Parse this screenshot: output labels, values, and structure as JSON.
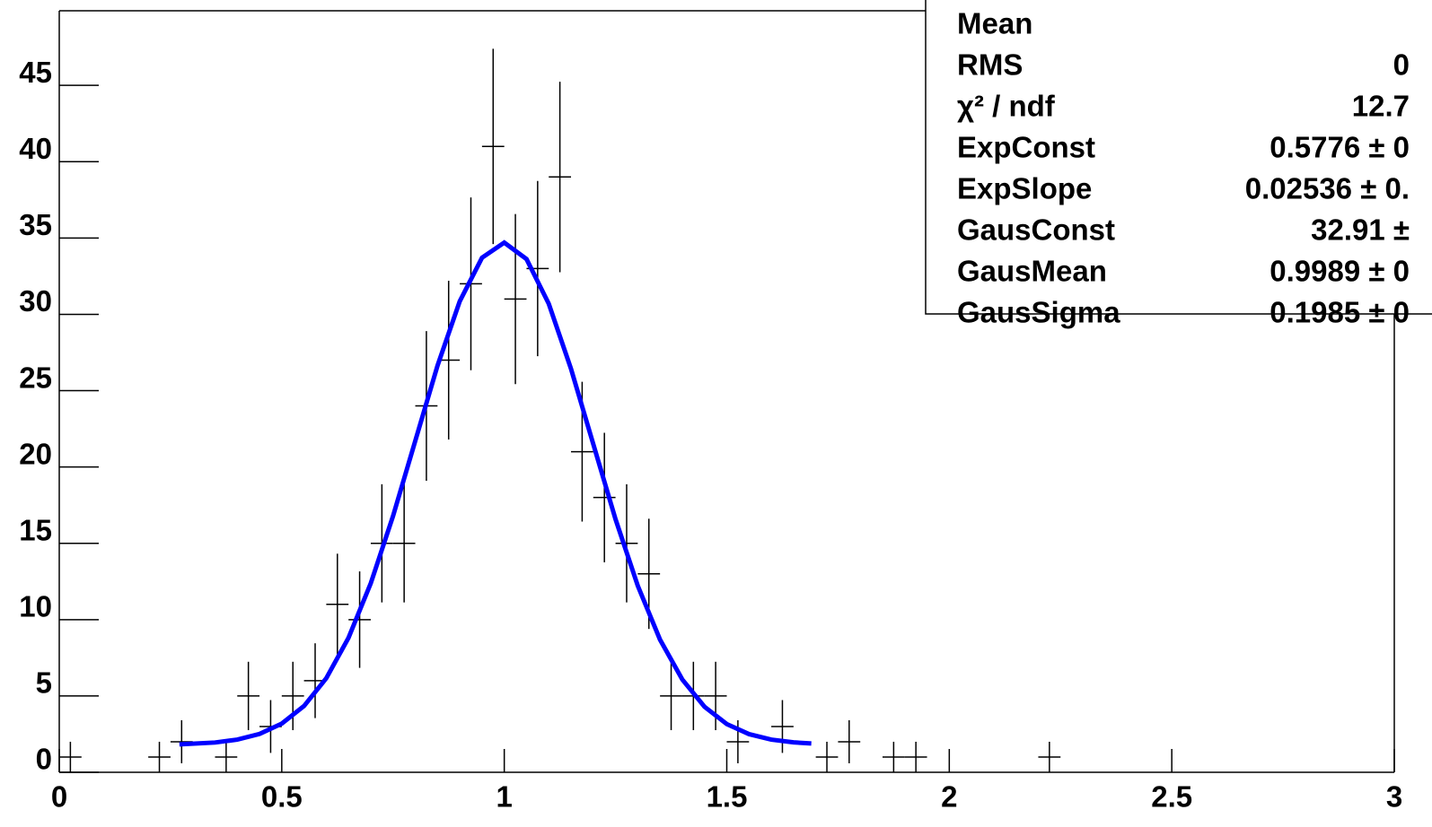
{
  "chart_data": {
    "type": "errorbar",
    "x": [
      0.025,
      0.225,
      0.275,
      0.375,
      0.425,
      0.475,
      0.525,
      0.575,
      0.625,
      0.675,
      0.725,
      0.775,
      0.825,
      0.875,
      0.925,
      0.975,
      1.025,
      1.075,
      1.125,
      1.175,
      1.225,
      1.275,
      1.325,
      1.375,
      1.425,
      1.475,
      1.525,
      1.625,
      1.725,
      1.775,
      1.875,
      1.925,
      2.225
    ],
    "values": [
      1,
      1,
      2,
      1,
      5,
      3,
      5,
      6,
      11,
      10,
      15,
      15,
      24,
      27,
      32,
      41,
      31,
      33,
      39,
      21,
      18,
      15,
      13,
      5,
      5,
      5,
      2,
      3,
      1,
      2,
      1,
      1,
      1
    ],
    "errors": [
      1,
      1,
      1.41,
      1,
      2.24,
      1.73,
      2.24,
      2.45,
      3.32,
      3.16,
      3.87,
      3.87,
      4.9,
      5.2,
      5.66,
      6.4,
      5.57,
      5.74,
      6.24,
      4.58,
      4.24,
      3.87,
      3.61,
      2.24,
      2.24,
      2.24,
      1.41,
      1.73,
      1,
      1.41,
      1,
      1,
      1
    ],
    "bin_width": 0.05,
    "color": "#000000",
    "fit": {
      "color": "#0000ff",
      "x": [
        0.27,
        0.35,
        0.4,
        0.45,
        0.5,
        0.55,
        0.6,
        0.65,
        0.7,
        0.75,
        0.8,
        0.85,
        0.9,
        0.95,
        1.0,
        1.05,
        1.1,
        1.15,
        1.2,
        1.25,
        1.3,
        1.35,
        1.4,
        1.45,
        1.5,
        1.55,
        1.6,
        1.65,
        1.69
      ],
      "values": [
        1.83,
        1.95,
        2.14,
        2.51,
        3.19,
        4.34,
        6.16,
        8.81,
        12.38,
        16.78,
        21.71,
        26.64,
        30.86,
        33.71,
        34.7,
        33.62,
        30.69,
        26.43,
        21.5,
        16.58,
        12.22,
        8.69,
        6.08,
        4.29,
        3.16,
        2.5,
        2.14,
        1.96,
        1.89
      ]
    },
    "xlim": [
      0,
      3
    ],
    "xticks": [
      0,
      0.5,
      1,
      1.5,
      2,
      2.5,
      3
    ],
    "ylim": [
      0,
      48.3
    ],
    "yticks": [
      0,
      5,
      10,
      15,
      20,
      25,
      30,
      35,
      40,
      45
    ],
    "stats": [
      {
        "label": "Mean"
      },
      {
        "label": "RMS",
        "value": "0"
      },
      {
        "label": "χ² / ndf",
        "value": "12.7"
      },
      {
        "label": "ExpConst",
        "value": "0.5776 ± 0"
      },
      {
        "label": "ExpSlope",
        "value": "0.02536 ± 0."
      },
      {
        "label": "GausConst",
        "value": "32.91 ±"
      },
      {
        "label": "GausMean",
        "value": "0.9989 ± 0"
      },
      {
        "label": "GausSigma",
        "value": "0.1985 ± 0"
      }
    ]
  }
}
